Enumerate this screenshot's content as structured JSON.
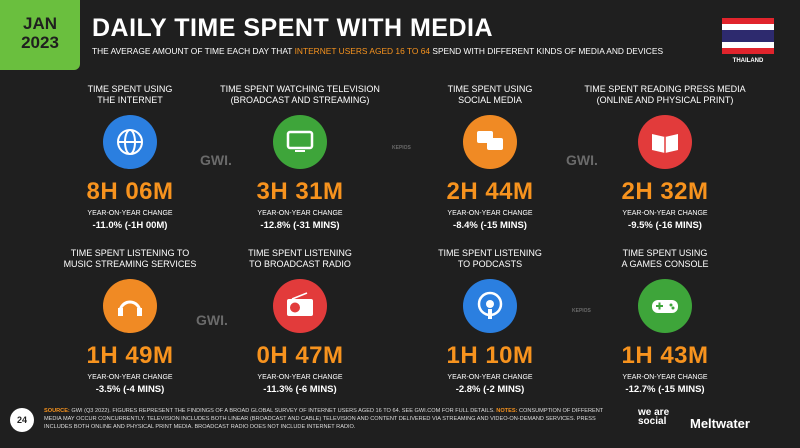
{
  "header": {
    "badge": [
      "JAN",
      "2023"
    ],
    "title": "DAILY TIME SPENT WITH MEDIA",
    "subtitle_parts": [
      "THE AVERAGE AMOUNT OF TIME EACH DAY THAT ",
      "INTERNET USERS AGED 16 TO 64",
      " SPEND WITH DIFFERENT KINDS OF MEDIA AND DEVICES"
    ],
    "country": "THAILAND"
  },
  "items": [
    {
      "label": [
        "TIME SPENT USING",
        "THE INTERNET"
      ],
      "value": "8H 06M",
      "change_label": "YEAR-ON-YEAR CHANGE",
      "change": "-11.0% (-1H 00M)",
      "color": "#2b7fe0"
    },
    {
      "label": [
        "TIME SPENT WATCHING TELEVISION",
        "(BROADCAST AND STREAMING)"
      ],
      "value": "3H 31M",
      "change_label": "YEAR-ON-YEAR CHANGE",
      "change": "-12.8% (-31 MINS)",
      "color": "#3ea53a"
    },
    {
      "label": [
        "TIME SPENT USING",
        "SOCIAL MEDIA"
      ],
      "value": "2H 44M",
      "change_label": "YEAR-ON-YEAR CHANGE",
      "change": "-8.4% (-15 MINS)",
      "color": "#f08a24"
    },
    {
      "label": [
        "TIME SPENT READING PRESS MEDIA",
        "(ONLINE AND PHYSICAL PRINT)"
      ],
      "value": "2H 32M",
      "change_label": "YEAR-ON-YEAR CHANGE",
      "change": "-9.5% (-16 MINS)",
      "color": "#e23b3b"
    },
    {
      "label": [
        "TIME SPENT LISTENING TO",
        "MUSIC STREAMING SERVICES"
      ],
      "value": "1H 49M",
      "change_label": "YEAR-ON-YEAR CHANGE",
      "change": "-3.5% (-4 MINS)",
      "color": "#f08a24"
    },
    {
      "label": [
        "TIME SPENT LISTENING",
        "TO BROADCAST RADIO"
      ],
      "value": "0H 47M",
      "change_label": "YEAR-ON-YEAR CHANGE",
      "change": "-11.3% (-6 MINS)",
      "color": "#e23b3b"
    },
    {
      "label": [
        "TIME SPENT LISTENING",
        "TO PODCASTS"
      ],
      "value": "1H 10M",
      "change_label": "YEAR-ON-YEAR CHANGE",
      "change": "-2.8% (-2 MINS)",
      "color": "#2b7fe0"
    },
    {
      "label": [
        "TIME SPENT USING",
        "A GAMES CONSOLE"
      ],
      "value": "1H 43M",
      "change_label": "YEAR-ON-YEAR CHANGE",
      "change": "-12.7% (-15 MINS)",
      "color": "#3ea53a"
    }
  ],
  "watermarks": [
    "GWI.",
    "KEPIOS",
    "GWI.",
    "GWI.",
    "KEPIOS"
  ],
  "footer": {
    "page": "24",
    "source_parts": [
      "SOURCE:",
      " GWI (Q3 2022). FIGURES REPRESENT THE FINDINGS OF A BROAD GLOBAL SURVEY OF INTERNET USERS AGED 16 TO 64. SEE GWI.COM FOR FULL DETAILS. ",
      "NOTES:",
      " CONSUMPTION OF DIFFERENT MEDIA MAY OCCUR CONCURRENTLY. TELEVISION INCLUDES BOTH LINEAR (BROADCAST AND CABLE) TELEVISION AND CONTENT DELIVERED VIA STREAMING AND VIDEO-ON-DEMAND SERVICES. PRESS INCLUDES BOTH ONLINE AND PHYSICAL PRINT MEDIA. BROADCAST RADIO DOES NOT INCLUDE INTERNET RADIO."
    ],
    "logos": [
      "we are social",
      "Meltwater"
    ]
  }
}
